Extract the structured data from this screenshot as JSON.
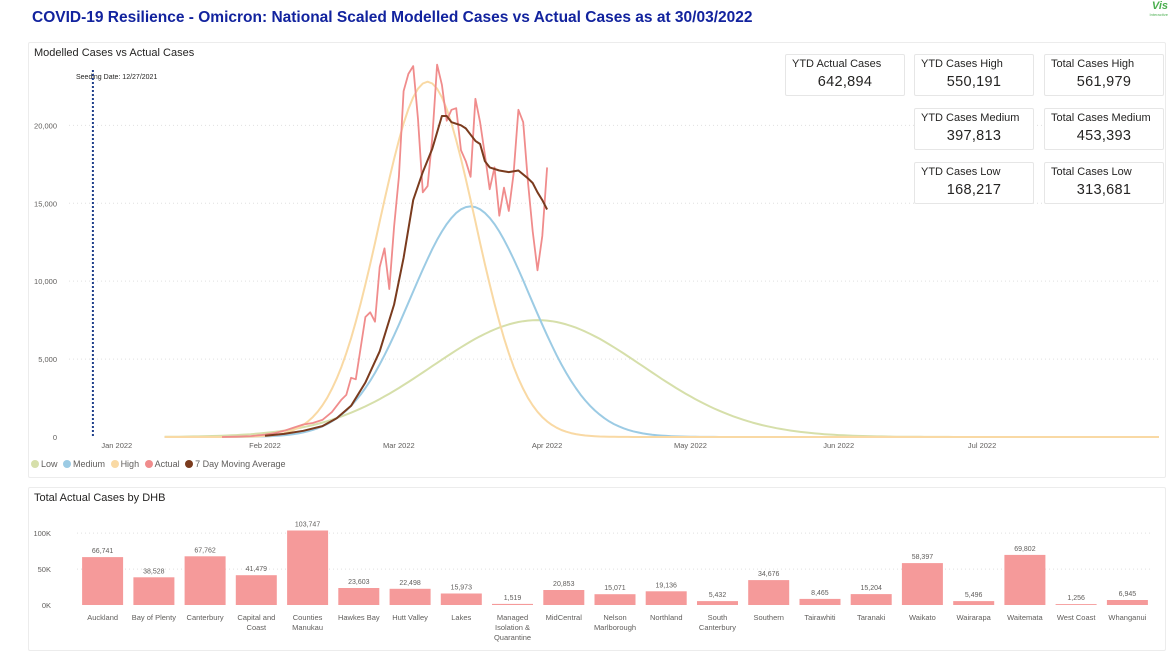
{
  "header": {
    "title": "COVID-19 Resilience - Omicron: National Scaled Modelled Cases vs Actual Cases as at 30/03/2022",
    "logo_text": "Vis",
    "logo_sub": "Interactive"
  },
  "kpis": [
    {
      "label": "YTD Actual Cases",
      "value": "642,894"
    },
    {
      "label": "YTD Cases High",
      "value": "550,191"
    },
    {
      "label": "Total Cases High",
      "value": "561,979"
    },
    {
      "label": "YTD Cases Medium",
      "value": "397,813"
    },
    {
      "label": "Total Cases Medium",
      "value": "453,393"
    },
    {
      "label": "YTD Cases Low",
      "value": "168,217"
    },
    {
      "label": "Total Cases Low",
      "value": "313,681"
    }
  ],
  "colors": {
    "low": "#d6dfaa",
    "medium": "#9ccbe4",
    "high": "#f9d9a4",
    "actual": "#f08c8c",
    "ma7": "#7a3b1e",
    "bar": "#f59a9a",
    "title": "#12239e"
  },
  "chart_data": [
    {
      "type": "line",
      "title": "Modelled Cases vs Actual Cases",
      "annotation": "Seeding Date: 12/27/2021",
      "annotation_x": "2021-12-27",
      "x_unit": "days since 2022-01-01",
      "xlim": [
        -10,
        218
      ],
      "ylim": [
        0,
        24000
      ],
      "y_ticks": [
        0,
        5000,
        10000,
        15000,
        20000
      ],
      "y_tick_labels": [
        "0",
        "5,000",
        "10,000",
        "15,000",
        "20,000"
      ],
      "x_ticks": [
        {
          "x": 0,
          "label": "Jan 2022"
        },
        {
          "x": 31,
          "label": "Feb 2022"
        },
        {
          "x": 59,
          "label": "Mar 2022"
        },
        {
          "x": 90,
          "label": "Apr 2022"
        },
        {
          "x": 120,
          "label": "May 2022"
        },
        {
          "x": 151,
          "label": "Jun 2022"
        },
        {
          "x": 181,
          "label": "Jul 2022"
        }
      ],
      "legend": [
        "Low",
        "Medium",
        "High",
        "Actual",
        "7 Day Moving Average"
      ],
      "series": [
        {
          "name": "Low",
          "color_key": "low",
          "curve": "gaussian",
          "peak": 7500,
          "peak_x": 88,
          "sigma": 22,
          "x_start": 10,
          "x_end": 218
        },
        {
          "name": "Medium",
          "color_key": "medium",
          "curve": "gaussian",
          "peak": 14800,
          "peak_x": 74,
          "sigma": 12.5,
          "x_start": 10,
          "x_end": 218
        },
        {
          "name": "High",
          "color_key": "high",
          "curve": "gaussian",
          "peak": 22800,
          "peak_x": 65,
          "sigma": 10,
          "x_start": 10,
          "x_end": 218
        },
        {
          "name": "Actual",
          "color_key": "actual",
          "x": [
            22,
            25,
            28,
            31,
            33,
            35,
            37,
            39,
            41,
            43,
            45,
            47,
            48,
            49,
            50,
            51,
            52,
            53,
            54,
            55,
            56,
            57,
            58,
            59,
            60,
            61,
            62,
            63,
            64,
            65,
            66,
            67,
            68,
            69,
            70,
            71,
            72,
            73,
            74,
            75,
            76,
            77,
            78,
            79,
            80,
            81,
            82,
            83,
            84,
            85,
            86,
            87,
            88,
            89,
            90
          ],
          "y": [
            0,
            20,
            60,
            150,
            250,
            400,
            600,
            800,
            900,
            1100,
            1600,
            2400,
            2700,
            3800,
            3700,
            5700,
            7700,
            8000,
            7400,
            10900,
            12100,
            9500,
            13500,
            16700,
            22200,
            23300,
            23800,
            20400,
            15700,
            16100,
            19200,
            23900,
            22600,
            20300,
            21000,
            21100,
            18400,
            17700,
            16700,
            21700,
            20200,
            18100,
            15900,
            17300,
            14200,
            16000,
            14500,
            16900,
            21000,
            20200,
            16400,
            13200,
            10700,
            12900,
            17300
          ]
        },
        {
          "name": "7 Day Moving Average",
          "color_key": "ma7",
          "x": [
            31,
            35,
            39,
            43,
            46,
            49,
            52,
            55,
            58,
            60,
            62,
            64,
            66,
            68,
            69,
            70,
            72,
            73,
            74,
            75,
            76,
            77,
            78,
            80,
            82,
            84,
            86,
            87,
            88,
            89,
            90
          ],
          "y": [
            80,
            200,
            400,
            700,
            1200,
            2000,
            3500,
            5500,
            8500,
            11500,
            15200,
            17000,
            18500,
            20600,
            20600,
            20200,
            20000,
            19800,
            19400,
            19000,
            18800,
            17700,
            17300,
            17100,
            17000,
            17100,
            16600,
            16300,
            15700,
            15200,
            14600
          ]
        }
      ]
    },
    {
      "type": "bar",
      "title": "Total Actual Cases by DHB",
      "ylim": [
        0,
        110000
      ],
      "y_ticks": [
        0,
        50000,
        100000
      ],
      "y_tick_labels": [
        "0K",
        "50K",
        "100K"
      ],
      "categories": [
        "Auckland",
        "Bay of Plenty",
        "Canterbury",
        "Capital and Coast",
        "Counties Manukau",
        "Hawkes Bay",
        "Hutt Valley",
        "Lakes",
        "Managed Isolation & Quarantine",
        "MidCentral",
        "Nelson Marlborough",
        "Northland",
        "South Canterbury",
        "Southern",
        "Tairawhiti",
        "Taranaki",
        "Waikato",
        "Wairarapa",
        "Waitemata",
        "West Coast",
        "Whanganui"
      ],
      "category_lines": [
        [
          "Auckland"
        ],
        [
          "Bay of Plenty"
        ],
        [
          "Canterbury"
        ],
        [
          "Capital and",
          "Coast"
        ],
        [
          "Counties",
          "Manukau"
        ],
        [
          "Hawkes Bay"
        ],
        [
          "Hutt Valley"
        ],
        [
          "Lakes"
        ],
        [
          "Managed",
          "Isolation &",
          "Quarantine"
        ],
        [
          "MidCentral"
        ],
        [
          "Nelson",
          "Marlborough"
        ],
        [
          "Northland"
        ],
        [
          "South",
          "Canterbury"
        ],
        [
          "Southern"
        ],
        [
          "Tairawhiti"
        ],
        [
          "Taranaki"
        ],
        [
          "Waikato"
        ],
        [
          "Wairarapa"
        ],
        [
          "Waitemata"
        ],
        [
          "West Coast"
        ],
        [
          "Whanganui"
        ]
      ],
      "values": [
        66741,
        38528,
        67762,
        41479,
        103747,
        23603,
        22498,
        15973,
        1519,
        20853,
        15071,
        19136,
        5432,
        34676,
        8465,
        15204,
        58397,
        5496,
        69802,
        1256,
        6945
      ],
      "value_labels": [
        "66,741",
        "38,528",
        "67,762",
        "41,479",
        "103,747",
        "23,603",
        "22,498",
        "15,973",
        "1,519",
        "20,853",
        "15,071",
        "19,136",
        "5,432",
        "34,676",
        "8,465",
        "15,204",
        "58,397",
        "5,496",
        "69,802",
        "1,256",
        "6,945"
      ]
    }
  ]
}
